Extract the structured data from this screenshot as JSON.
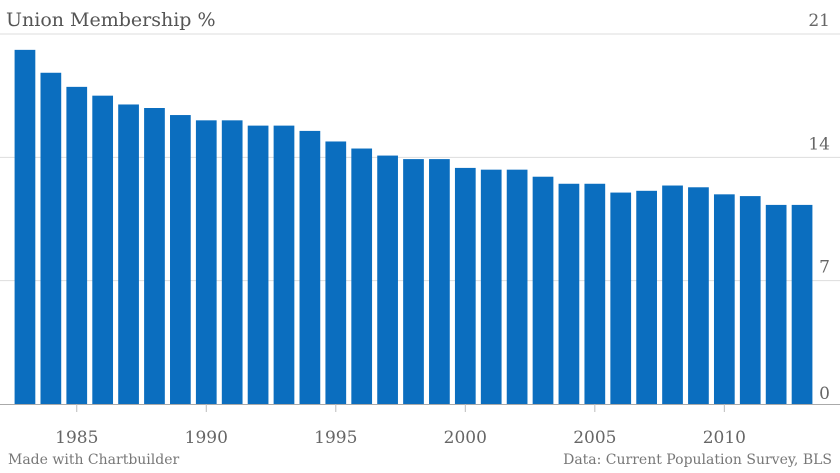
{
  "chart_data": {
    "type": "bar",
    "title": "Union Membership %",
    "xlabel": "",
    "ylabel": "",
    "categories": [
      1983,
      1984,
      1985,
      1986,
      1987,
      1988,
      1989,
      1990,
      1991,
      1992,
      1993,
      1994,
      1995,
      1996,
      1997,
      1998,
      1999,
      2000,
      2001,
      2002,
      2003,
      2004,
      2005,
      2006,
      2007,
      2008,
      2009,
      2010,
      2011,
      2012,
      2013
    ],
    "values": [
      20.1,
      18.8,
      18.0,
      17.5,
      17.0,
      16.8,
      16.4,
      16.1,
      16.1,
      15.8,
      15.8,
      15.5,
      14.9,
      14.5,
      14.1,
      13.9,
      13.9,
      13.4,
      13.3,
      13.3,
      12.9,
      12.5,
      12.5,
      12.0,
      12.1,
      12.4,
      12.3,
      11.9,
      11.8,
      11.3,
      11.3
    ],
    "ylim": [
      0,
      21
    ],
    "y_ticks": [
      0,
      7,
      14,
      21
    ],
    "x_tick_labels": [
      "1985",
      "1990",
      "1995",
      "2000",
      "2005",
      "2010"
    ],
    "grid": true,
    "bar_color": "#0b6ebf"
  },
  "footer": {
    "credit": "Made with Chartbuilder",
    "source": "Data: Current Population Survey, BLS"
  }
}
